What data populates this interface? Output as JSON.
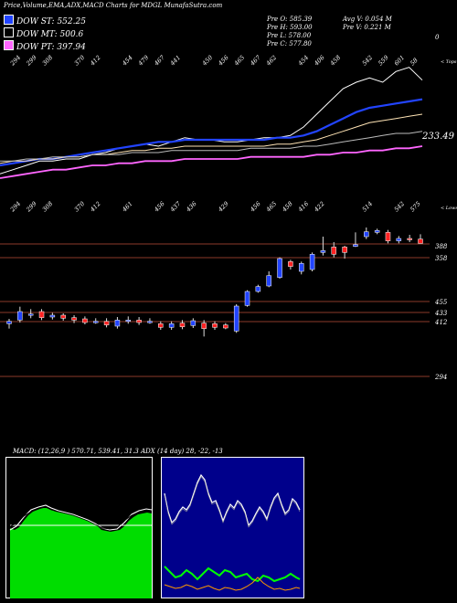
{
  "header": {
    "title": "Price,Volume,EMA,ADX,MACD Charts for MDGL MunafaSutra.com",
    "legend": [
      {
        "label": "DOW ST: 552.25",
        "color": "#2244ff"
      },
      {
        "label": "DOW MT: 500.6",
        "color": "#000000"
      },
      {
        "label": "DOW PT: 397.94",
        "color": "#ff66ff"
      }
    ],
    "stats_left": [
      "Pre O: 585.39",
      "Pre H: 593.00",
      "Pre L: 578.00",
      "Pre C: 577.80"
    ],
    "stats_right": [
      "Avg V: 0.054 M",
      "Pre V: 0.221 M"
    ],
    "corner_label": "0"
  },
  "chart_data": [
    {
      "type": "line",
      "panel": "ema",
      "top_ticks": [
        "294",
        "299",
        "308",
        "",
        "370",
        "412",
        "",
        "454",
        "479",
        "467",
        "441",
        "",
        "450",
        "456",
        "465",
        "467",
        "462",
        "",
        "454",
        "406",
        "458",
        "",
        "542",
        "559",
        "601",
        "58"
      ],
      "right_top_label": "< Tops",
      "price_label": "233.49",
      "series": [
        {
          "color": "#ffffff",
          "values": [
            110,
            108,
            106,
            104,
            104,
            103,
            103,
            101,
            100,
            98,
            97,
            96,
            97,
            95,
            93,
            94,
            94,
            95,
            95,
            94,
            93,
            93,
            92,
            88,
            82,
            76,
            70,
            67,
            65,
            67,
            62,
            60,
            66
          ]
        },
        {
          "color": "#2244ff",
          "values": [
            106,
            105,
            104,
            103,
            103,
            102,
            101,
            100,
            99,
            98,
            97,
            96,
            95,
            95,
            94,
            94,
            94,
            94,
            94,
            94,
            94,
            93,
            93,
            92,
            90,
            87,
            84,
            81,
            79,
            78,
            77,
            76,
            75
          ]
        },
        {
          "color": "#ffe4b5",
          "values": [
            105,
            104,
            104,
            103,
            103,
            102,
            102,
            101,
            101,
            100,
            99,
            99,
            98,
            98,
            97,
            97,
            97,
            97,
            97,
            97,
            97,
            96,
            96,
            95,
            94,
            92,
            90,
            88,
            86,
            85,
            84,
            83,
            82
          ]
        },
        {
          "color": "#bbbbbb",
          "values": [
            104,
            104,
            103,
            103,
            102,
            102,
            102,
            101,
            101,
            101,
            100,
            100,
            100,
            99,
            99,
            99,
            99,
            99,
            99,
            98,
            98,
            98,
            98,
            97,
            97,
            96,
            95,
            94,
            93,
            92,
            91,
            91,
            90
          ]
        },
        {
          "color": "#ff66ff",
          "values": [
            112,
            111,
            110,
            109,
            108,
            108,
            107,
            106,
            106,
            105,
            105,
            104,
            104,
            104,
            103,
            103,
            103,
            103,
            103,
            102,
            102,
            102,
            102,
            102,
            101,
            101,
            100,
            100,
            99,
            99,
            98,
            98,
            97
          ]
        }
      ]
    },
    {
      "type": "candlestick",
      "panel": "price",
      "bottom_ticks": [
        "294",
        "299",
        "308",
        "",
        "370",
        "412",
        "",
        "461",
        "",
        "456",
        "437",
        "436",
        "",
        "429",
        "",
        "456",
        "465",
        "458",
        "416",
        "422",
        "",
        "",
        "514",
        "",
        "542",
        "575"
      ],
      "right_bottom_label": "< Lows",
      "levels": [
        388,
        358,
        455,
        433,
        412,
        294
      ],
      "candles": [
        {
          "o": 446,
          "c": 450,
          "h": 454,
          "l": 438
        },
        {
          "o": 452,
          "c": 466,
          "h": 474,
          "l": 448
        },
        {
          "o": 462,
          "c": 462,
          "h": 470,
          "l": 455
        },
        {
          "o": 466,
          "c": 456,
          "h": 470,
          "l": 452
        },
        {
          "o": 457,
          "c": 460,
          "h": 464,
          "l": 453
        },
        {
          "o": 460,
          "c": 455,
          "h": 463,
          "l": 451
        },
        {
          "o": 456,
          "c": 452,
          "h": 460,
          "l": 447
        },
        {
          "o": 454,
          "c": 448,
          "h": 458,
          "l": 445
        },
        {
          "o": 449,
          "c": 450,
          "h": 455,
          "l": 446
        },
        {
          "o": 450,
          "c": 444,
          "h": 455,
          "l": 440
        },
        {
          "o": 442,
          "c": 452,
          "h": 457,
          "l": 438
        },
        {
          "o": 452,
          "c": 452,
          "h": 458,
          "l": 446
        },
        {
          "o": 452,
          "c": 448,
          "h": 457,
          "l": 444
        },
        {
          "o": 450,
          "c": 450,
          "h": 455,
          "l": 446
        },
        {
          "o": 446,
          "c": 440,
          "h": 450,
          "l": 436
        },
        {
          "o": 440,
          "c": 446,
          "h": 450,
          "l": 436
        },
        {
          "o": 447,
          "c": 441,
          "h": 452,
          "l": 437
        },
        {
          "o": 443,
          "c": 451,
          "h": 455,
          "l": 439
        },
        {
          "o": 447,
          "c": 438,
          "h": 452,
          "l": 425
        },
        {
          "o": 446,
          "c": 440,
          "h": 450,
          "l": 436
        },
        {
          "o": 444,
          "c": 439,
          "h": 447,
          "l": 437
        },
        {
          "o": 434,
          "c": 475,
          "h": 478,
          "l": 431
        },
        {
          "o": 476,
          "c": 499,
          "h": 501,
          "l": 474
        },
        {
          "o": 499,
          "c": 507,
          "h": 510,
          "l": 497
        },
        {
          "o": 508,
          "c": 525,
          "h": 532,
          "l": 506
        },
        {
          "o": 522,
          "c": 553,
          "h": 555,
          "l": 520
        },
        {
          "o": 548,
          "c": 540,
          "h": 551,
          "l": 535
        },
        {
          "o": 532,
          "c": 545,
          "h": 548,
          "l": 527
        },
        {
          "o": 535,
          "c": 560,
          "h": 563,
          "l": 532
        },
        {
          "o": 563,
          "c": 566,
          "h": 589,
          "l": 558
        },
        {
          "o": 572,
          "c": 560,
          "h": 580,
          "l": 555
        },
        {
          "o": 572,
          "c": 563,
          "h": 574,
          "l": 553
        },
        {
          "o": 573,
          "c": 576,
          "h": 596,
          "l": 572
        },
        {
          "o": 589,
          "c": 597,
          "h": 604,
          "l": 585
        },
        {
          "o": 596,
          "c": 599,
          "h": 602,
          "l": 593
        },
        {
          "o": 596,
          "c": 582,
          "h": 600,
          "l": 578
        },
        {
          "o": 582,
          "c": 586,
          "h": 590,
          "l": 578
        },
        {
          "o": 586,
          "c": 584,
          "h": 592,
          "l": 580
        },
        {
          "o": 585,
          "c": 578,
          "h": 593,
          "l": 578
        }
      ]
    },
    {
      "type": "line",
      "panel": "macd",
      "label": "MACD: (12,26,9 ) 570.71, 539.41, 31.3 ADX (14 day) 28, -22, -13"
    }
  ]
}
